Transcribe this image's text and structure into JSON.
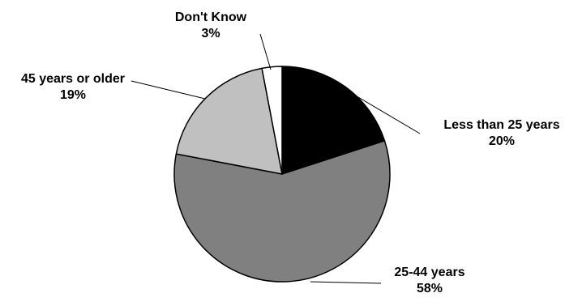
{
  "chart_data": {
    "type": "pie",
    "start_angle_deg": 0,
    "direction": "clockwise",
    "slices": [
      {
        "label": "Less than 25 years",
        "value": 20,
        "value_label": "20%",
        "color": "#000000"
      },
      {
        "label": "25-44 years",
        "value": 58,
        "value_label": "58%",
        "color": "#808080"
      },
      {
        "label": "45 years or older",
        "value": 19,
        "value_label": "19%",
        "color": "#c0c0c0"
      },
      {
        "label": "Don't Know",
        "value": 3,
        "value_label": "3%",
        "color": "#ffffff"
      }
    ]
  }
}
